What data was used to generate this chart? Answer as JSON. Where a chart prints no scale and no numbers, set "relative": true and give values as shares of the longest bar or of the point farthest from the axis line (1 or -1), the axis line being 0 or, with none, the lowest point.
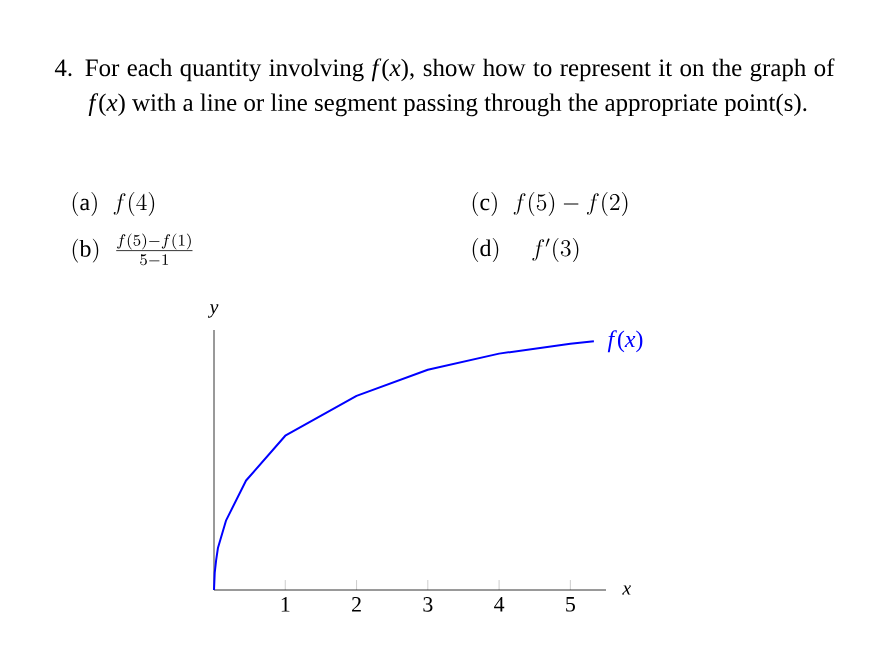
{
  "chart_data": {
    "type": "line",
    "title": "4. For each quantity involving *f*(*x*), show how to represent it on the graph of *f*(*x*) with a line or line segment passing through the appropriate point(s).",
    "annotations": [
      "\\mathrm{(a)}\\;\\; f(4)",
      "\\mathrm{(b)}\\;\\; \\frac{f(5)-f(1)}{5-1}",
      "\\mathrm{(c)}\\;\\; f(5)-f(2)",
      "\\mathrm{(d)}\\quad\\; f'(3)"
    ],
    "xlabel": "x",
    "ylabel": "y",
    "x": [
      0,
      0.01,
      0.03,
      0.056,
      0.17,
      0.45,
      1,
      2,
      3,
      4,
      5,
      5.33
    ],
    "series": [
      {
        "name": "*f*(*x*)",
        "color": "#0000ff",
        "values": [
          0,
          0.07,
          0.12,
          0.17,
          0.28,
          0.44,
          0.62,
          0.78,
          0.885,
          0.95,
          0.99,
          1
        ]
      }
    ],
    "relative": true,
    "xlim": [
      0,
      5.5
    ],
    "xticks": [
      1,
      2,
      3,
      4,
      5
    ]
  }
}
